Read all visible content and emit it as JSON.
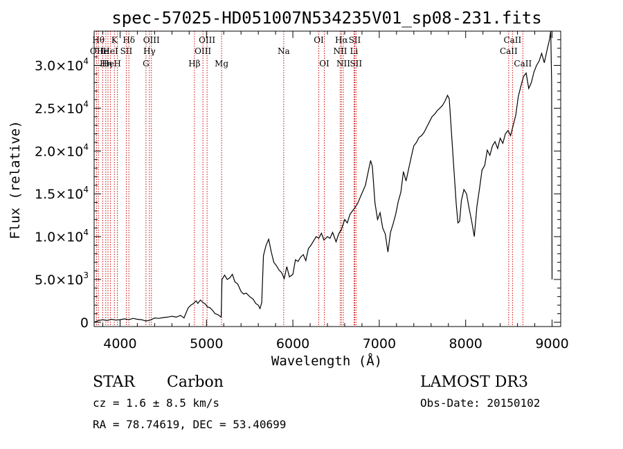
{
  "chart_data": {
    "type": "line",
    "title": "spec-57025-HD051007N534235V01_sp08-231.fits",
    "xlabel": "Wavelength (Å)",
    "ylabel": "Flux (relative)",
    "xlim": [
      3700,
      9100
    ],
    "ylim": [
      -500,
      34000
    ],
    "x_ticks": [
      {
        "value": 4000,
        "label": "4000"
      },
      {
        "value": 5000,
        "label": "5000"
      },
      {
        "value": 6000,
        "label": "6000"
      },
      {
        "value": 7000,
        "label": "7000"
      },
      {
        "value": 8000,
        "label": "8000"
      },
      {
        "value": 9000,
        "label": "9000"
      }
    ],
    "y_ticks": [
      {
        "value": 0,
        "mantissa": "0",
        "exp": ""
      },
      {
        "value": 5000,
        "mantissa": "5.0×10",
        "exp": "3"
      },
      {
        "value": 10000,
        "mantissa": "1.0×10",
        "exp": "4"
      },
      {
        "value": 15000,
        "mantissa": "1.5×10",
        "exp": "4"
      },
      {
        "value": 20000,
        "mantissa": "2.0×10",
        "exp": "4"
      },
      {
        "value": 25000,
        "mantissa": "2.5×10",
        "exp": "4"
      },
      {
        "value": 30000,
        "mantissa": "3.0×10",
        "exp": "4"
      }
    ],
    "line_color": "#000000",
    "marker_color": "#cc0000",
    "spectrum": [
      [
        3700,
        0
      ],
      [
        3750,
        200
      ],
      [
        3800,
        300
      ],
      [
        3850,
        200
      ],
      [
        3900,
        350
      ],
      [
        3950,
        250
      ],
      [
        4000,
        300
      ],
      [
        4050,
        400
      ],
      [
        4100,
        300
      ],
      [
        4150,
        450
      ],
      [
        4200,
        350
      ],
      [
        4250,
        300
      ],
      [
        4300,
        150
      ],
      [
        4350,
        250
      ],
      [
        4400,
        500
      ],
      [
        4450,
        450
      ],
      [
        4500,
        550
      ],
      [
        4550,
        600
      ],
      [
        4600,
        700
      ],
      [
        4650,
        600
      ],
      [
        4700,
        800
      ],
      [
        4740,
        500
      ],
      [
        4760,
        1000
      ],
      [
        4790,
        1700
      ],
      [
        4820,
        2000
      ],
      [
        4850,
        2200
      ],
      [
        4880,
        2500
      ],
      [
        4900,
        2200
      ],
      [
        4930,
        2600
      ],
      [
        4960,
        2300
      ],
      [
        4990,
        2100
      ],
      [
        5010,
        1800
      ],
      [
        5040,
        1700
      ],
      [
        5070,
        1400
      ],
      [
        5100,
        1000
      ],
      [
        5130,
        900
      ],
      [
        5170,
        600
      ],
      [
        5180,
        5000
      ],
      [
        5210,
        5500
      ],
      [
        5240,
        5000
      ],
      [
        5270,
        5200
      ],
      [
        5300,
        5600
      ],
      [
        5330,
        4700
      ],
      [
        5360,
        4500
      ],
      [
        5400,
        3600
      ],
      [
        5430,
        3300
      ],
      [
        5460,
        3400
      ],
      [
        5500,
        3000
      ],
      [
        5540,
        2700
      ],
      [
        5570,
        2200
      ],
      [
        5600,
        2000
      ],
      [
        5620,
        1600
      ],
      [
        5640,
        2300
      ],
      [
        5660,
        7800
      ],
      [
        5690,
        9000
      ],
      [
        5720,
        9700
      ],
      [
        5750,
        8200
      ],
      [
        5780,
        7000
      ],
      [
        5810,
        6600
      ],
      [
        5840,
        6100
      ],
      [
        5870,
        5800
      ],
      [
        5900,
        5100
      ],
      [
        5930,
        6500
      ],
      [
        5960,
        5300
      ],
      [
        6000,
        5600
      ],
      [
        6030,
        7300
      ],
      [
        6060,
        7100
      ],
      [
        6090,
        7600
      ],
      [
        6120,
        7900
      ],
      [
        6150,
        7200
      ],
      [
        6180,
        8600
      ],
      [
        6210,
        9000
      ],
      [
        6240,
        9500
      ],
      [
        6270,
        10000
      ],
      [
        6300,
        9800
      ],
      [
        6330,
        10400
      ],
      [
        6360,
        9600
      ],
      [
        6400,
        10000
      ],
      [
        6430,
        9800
      ],
      [
        6460,
        10500
      ],
      [
        6500,
        9400
      ],
      [
        6530,
        10300
      ],
      [
        6560,
        10800
      ],
      [
        6600,
        12000
      ],
      [
        6630,
        11600
      ],
      [
        6660,
        12600
      ],
      [
        6690,
        13000
      ],
      [
        6720,
        13400
      ],
      [
        6750,
        13900
      ],
      [
        6780,
        14600
      ],
      [
        6810,
        15300
      ],
      [
        6840,
        16000
      ],
      [
        6870,
        17500
      ],
      [
        6900,
        18900
      ],
      [
        6920,
        18200
      ],
      [
        6950,
        14000
      ],
      [
        6980,
        12000
      ],
      [
        7010,
        12800
      ],
      [
        7040,
        11000
      ],
      [
        7070,
        10300
      ],
      [
        7100,
        8200
      ],
      [
        7130,
        10500
      ],
      [
        7160,
        11500
      ],
      [
        7190,
        12600
      ],
      [
        7220,
        14100
      ],
      [
        7250,
        15200
      ],
      [
        7280,
        17600
      ],
      [
        7310,
        16500
      ],
      [
        7340,
        17900
      ],
      [
        7370,
        19300
      ],
      [
        7400,
        20600
      ],
      [
        7430,
        21000
      ],
      [
        7460,
        21600
      ],
      [
        7490,
        21800
      ],
      [
        7520,
        22200
      ],
      [
        7550,
        22800
      ],
      [
        7580,
        23400
      ],
      [
        7610,
        24000
      ],
      [
        7640,
        24300
      ],
      [
        7670,
        24700
      ],
      [
        7700,
        25000
      ],
      [
        7730,
        25300
      ],
      [
        7760,
        25800
      ],
      [
        7790,
        26500
      ],
      [
        7810,
        26100
      ],
      [
        7830,
        23000
      ],
      [
        7860,
        18500
      ],
      [
        7890,
        13900
      ],
      [
        7910,
        11600
      ],
      [
        7930,
        11800
      ],
      [
        7950,
        14200
      ],
      [
        7980,
        15500
      ],
      [
        8010,
        15000
      ],
      [
        8040,
        13300
      ],
      [
        8070,
        11800
      ],
      [
        8100,
        10000
      ],
      [
        8130,
        13500
      ],
      [
        8160,
        15600
      ],
      [
        8190,
        17800
      ],
      [
        8220,
        18300
      ],
      [
        8250,
        20100
      ],
      [
        8280,
        19500
      ],
      [
        8310,
        20600
      ],
      [
        8340,
        21100
      ],
      [
        8370,
        20300
      ],
      [
        8400,
        21500
      ],
      [
        8430,
        20900
      ],
      [
        8460,
        22000
      ],
      [
        8490,
        22400
      ],
      [
        8520,
        21800
      ],
      [
        8550,
        23000
      ],
      [
        8580,
        24200
      ],
      [
        8610,
        26400
      ],
      [
        8640,
        27600
      ],
      [
        8670,
        28700
      ],
      [
        8700,
        29100
      ],
      [
        8730,
        27300
      ],
      [
        8760,
        28000
      ],
      [
        8790,
        29200
      ],
      [
        8820,
        30000
      ],
      [
        8850,
        30500
      ],
      [
        8880,
        31400
      ],
      [
        8910,
        30300
      ],
      [
        8940,
        31700
      ],
      [
        8970,
        33000
      ],
      [
        8985,
        34000
      ],
      [
        8995,
        28000
      ],
      [
        9000,
        5000
      ]
    ],
    "lines": [
      {
        "wl": 3750,
        "label": "Hθ",
        "row": 1
      },
      {
        "wl": 3728,
        "label": "OII",
        "row": 2
      },
      {
        "wl": 3800,
        "label": "He",
        "row": 2
      },
      {
        "wl": 3835,
        "label": "Hη",
        "row": 3
      },
      {
        "wl": 3860,
        "label": "He",
        "row": 3
      },
      {
        "wl": 3889,
        "label": "HeI",
        "row": 2
      },
      {
        "wl": 3934,
        "label": "K",
        "row": 1
      },
      {
        "wl": 3969,
        "label": "H",
        "row": 3
      },
      {
        "wl": 4072,
        "label": "SII",
        "row": 2
      },
      {
        "wl": 4102,
        "label": "Hδ",
        "row": 1
      },
      {
        "wl": 4300,
        "label": "G",
        "row": 3
      },
      {
        "wl": 4340,
        "label": "Hγ",
        "row": 2
      },
      {
        "wl": 4363,
        "label": "OIII",
        "row": 1
      },
      {
        "wl": 4861,
        "label": "Hβ",
        "row": 3
      },
      {
        "wl": 4959,
        "label": "OIII",
        "row": 2
      },
      {
        "wl": 5007,
        "label": "OIII",
        "row": 1
      },
      {
        "wl": 5175,
        "label": "Mg",
        "row": 3
      },
      {
        "wl": 5894,
        "label": "Na",
        "row": 2
      },
      {
        "wl": 6300,
        "label": "OI",
        "row": 1
      },
      {
        "wl": 6364,
        "label": "OI",
        "row": 3
      },
      {
        "wl": 6548,
        "label": "NII",
        "row": 2
      },
      {
        "wl": 6563,
        "label": "Hα",
        "row": 1
      },
      {
        "wl": 6584,
        "label": "NII",
        "row": 3
      },
      {
        "wl": 6708,
        "label": "Li",
        "row": 2
      },
      {
        "wl": 6716,
        "label": "SII",
        "row": 1
      },
      {
        "wl": 6731,
        "label": "SII",
        "row": 3
      },
      {
        "wl": 8498,
        "label": "CaII",
        "row": 2
      },
      {
        "wl": 8542,
        "label": "CaII",
        "row": 1
      },
      {
        "wl": 8662,
        "label": "CaII",
        "row": 3
      }
    ]
  },
  "footer": {
    "class_label": "STAR",
    "subclass": "Carbon",
    "survey": "LAMOST DR3",
    "cz": "cz = 1.6 ± 8.5 km/s",
    "obs_date": "Obs-Date: 20150102",
    "coords": "RA =  78.74619, DEC =  53.40699"
  }
}
